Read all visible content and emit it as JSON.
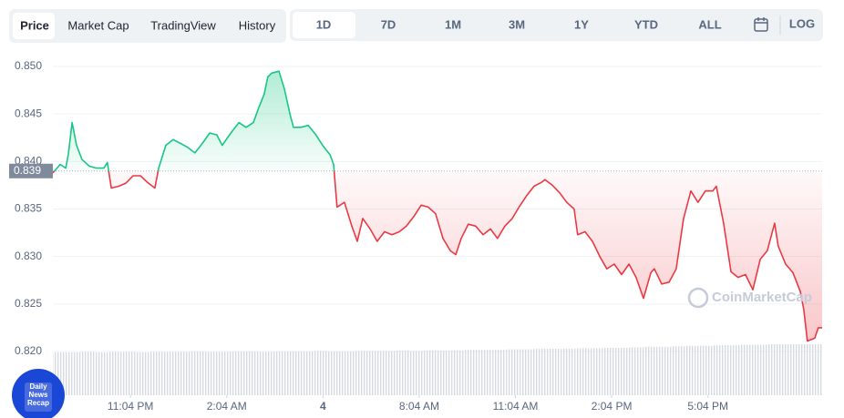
{
  "ui": {
    "tabs": [
      "Price",
      "Market Cap",
      "TradingView",
      "History"
    ],
    "ranges": [
      "1D",
      "7D",
      "1M",
      "3M",
      "1Y",
      "YTD",
      "ALL"
    ],
    "log": "LOG",
    "watermark": "CoinMarketCap",
    "badge": [
      "Daily",
      "News",
      "Recap"
    ]
  },
  "chart_data": {
    "type": "line",
    "x": [
      20.65,
      20.88,
      21.05,
      21.13,
      21.25,
      21.39,
      21.56,
      21.79,
      22.01,
      22.24,
      22.35,
      22.47,
      22.7,
      22.92,
      23.15,
      23.38,
      23.6,
      23.83,
      23.95,
      24.17,
      24.4,
      24.63,
      24.85,
      25.08,
      25.31,
      25.54,
      25.76,
      25.93,
      26.22,
      26.45,
      26.67,
      26.9,
      27.07,
      27.24,
      27.35,
      27.47,
      27.7,
      27.87,
      28.04,
      28.15,
      28.38,
      28.61,
      28.83,
      29.06,
      29.29,
      29.4,
      29.51,
      29.74,
      29.97,
      30.14,
      30.31,
      30.54,
      30.76,
      30.99,
      31.22,
      31.45,
      31.67,
      31.9,
      32.13,
      32.35,
      32.58,
      32.81,
      33.04,
      33.21,
      33.38,
      33.6,
      33.83,
      34.06,
      34.29,
      34.51,
      34.74,
      34.97,
      35.2,
      35.42,
      35.65,
      35.88,
      35.99,
      36.22,
      36.45,
      36.67,
      36.9,
      37.01,
      37.24,
      37.47,
      37.7,
      37.92,
      38.15,
      38.38,
      38.61,
      38.83,
      39.06,
      39.29,
      39.4,
      39.63,
      39.86,
      40.08,
      40.31,
      40.54,
      40.76,
      40.99,
      41.22,
      41.33,
      41.56,
      41.79,
      42.01,
      42.24,
      42.47,
      42.7,
      42.92,
      43.15,
      43.26,
      43.49,
      43.72,
      43.95,
      44.06,
      44.17,
      44.4,
      44.51,
      44.63
    ],
    "values": [
      0.8388,
      0.8397,
      0.8393,
      0.8407,
      0.8441,
      0.8417,
      0.8402,
      0.8395,
      0.8393,
      0.8393,
      0.8399,
      0.8372,
      0.8374,
      0.8377,
      0.8385,
      0.8385,
      0.8378,
      0.8372,
      0.8393,
      0.8417,
      0.8423,
      0.8419,
      0.8415,
      0.8409,
      0.8419,
      0.843,
      0.8428,
      0.8417,
      0.8431,
      0.8441,
      0.8436,
      0.8441,
      0.8457,
      0.8471,
      0.8489,
      0.8493,
      0.8495,
      0.8476,
      0.845,
      0.8436,
      0.8436,
      0.8438,
      0.8429,
      0.8417,
      0.8407,
      0.8397,
      0.8352,
      0.8357,
      0.8332,
      0.8316,
      0.834,
      0.8329,
      0.8316,
      0.8326,
      0.8323,
      0.8326,
      0.8332,
      0.8342,
      0.8354,
      0.8352,
      0.8345,
      0.8319,
      0.8306,
      0.8302,
      0.8319,
      0.8334,
      0.8332,
      0.8323,
      0.8329,
      0.8319,
      0.8332,
      0.834,
      0.8353,
      0.8364,
      0.8374,
      0.8378,
      0.8381,
      0.8375,
      0.8367,
      0.8357,
      0.835,
      0.8323,
      0.8326,
      0.8316,
      0.83,
      0.8287,
      0.8292,
      0.8281,
      0.8292,
      0.8278,
      0.8256,
      0.8283,
      0.8287,
      0.8271,
      0.8273,
      0.8287,
      0.834,
      0.8369,
      0.8357,
      0.8369,
      0.8369,
      0.8374,
      0.8335,
      0.8284,
      0.8278,
      0.8281,
      0.8265,
      0.8297,
      0.8306,
      0.8335,
      0.8311,
      0.8292,
      0.8283,
      0.8263,
      0.8244,
      0.8211,
      0.8214,
      0.8225,
      0.8225
    ],
    "xlim": [
      20.65,
      44.63
    ],
    "ylim": [
      0.82,
      0.85
    ],
    "xticks": [
      {
        "value": 23.07,
        "label": "11:04 PM"
      },
      {
        "value": 26.07,
        "label": "2:04 AM"
      },
      {
        "value": 29.07,
        "label": "4"
      },
      {
        "value": 32.07,
        "label": "8:04 AM"
      },
      {
        "value": 35.07,
        "label": "11:04 AM"
      },
      {
        "value": 38.07,
        "label": "2:04 PM"
      },
      {
        "value": 41.07,
        "label": "5:04 PM"
      }
    ],
    "yticks": [
      {
        "value": 0.82,
        "label": "0.820"
      },
      {
        "value": 0.825,
        "label": "0.825"
      },
      {
        "value": 0.83,
        "label": "0.830"
      },
      {
        "value": 0.835,
        "label": "0.835"
      },
      {
        "value": 0.84,
        "label": "0.840"
      },
      {
        "value": 0.845,
        "label": "0.845"
      },
      {
        "value": 0.85,
        "label": "0.850"
      }
    ],
    "baseline": 0.839,
    "up_color": "#16c784",
    "down_color": "#ea3943",
    "grid": true,
    "volume": {
      "ylim": [
        0,
        100
      ],
      "values": [
        84,
        84,
        85,
        84,
        85,
        85,
        84,
        85,
        85,
        85,
        86,
        85,
        85,
        86,
        86,
        85,
        86,
        86,
        86,
        87,
        86,
        86,
        87,
        87,
        87,
        88,
        87,
        88,
        88,
        88,
        89,
        89,
        89,
        90,
        90,
        91,
        91,
        91,
        92,
        92,
        93,
        93,
        94,
        95,
        95,
        96,
        97,
        97,
        98,
        98,
        99,
        99,
        100,
        100,
        100,
        100
      ]
    }
  }
}
